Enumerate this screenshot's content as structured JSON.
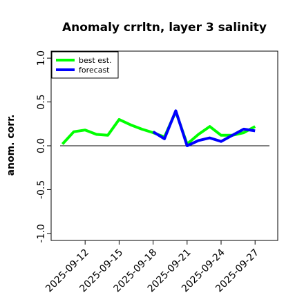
{
  "chart_data": {
    "type": "line",
    "title": "Anomaly crrltn, layer 3 salinity",
    "xlabel": "",
    "ylabel": "anom. corr.",
    "ylim": [
      -1.08,
      1.08
    ],
    "xlim": [
      "2025-09-09",
      "2025-09-29"
    ],
    "yticks": [
      -1.0,
      -0.5,
      0.0,
      0.5,
      1.0
    ],
    "ytick_labels": [
      "-1.0",
      "-0.5",
      "0.0",
      "0.5",
      "1.0"
    ],
    "xticks": [
      "2025-09-12",
      "2025-09-15",
      "2025-09-18",
      "2025-09-21",
      "2025-09-24",
      "2025-09-27"
    ],
    "xtick_labels": [
      "2025-09-12",
      "2025-09-15",
      "2025-09-18",
      "2025-09-21",
      "2025-09-24",
      "2025-09-27"
    ],
    "highlight_tick": "2025-09-18",
    "highlight_color": "#228b22",
    "zero_line": true,
    "legend_position": "top-left",
    "series": [
      {
        "name": "best est.",
        "color": "#00ff00",
        "x": [
          "2025-09-10",
          "2025-09-11",
          "2025-09-12",
          "2025-09-13",
          "2025-09-14",
          "2025-09-15",
          "2025-09-16",
          "2025-09-17",
          "2025-09-18",
          "2025-09-19",
          "2025-09-20",
          "2025-09-21",
          "2025-09-22",
          "2025-09-23",
          "2025-09-24",
          "2025-09-25",
          "2025-09-26",
          "2025-09-27"
        ],
        "y": [
          0.02,
          0.16,
          0.18,
          0.13,
          0.12,
          0.3,
          0.24,
          0.19,
          0.15,
          0.1,
          0.39,
          0.02,
          0.13,
          0.22,
          0.12,
          0.12,
          0.15,
          0.22
        ]
      },
      {
        "name": "forecast",
        "color": "#0000ff",
        "x": [
          "2025-09-18",
          "2025-09-19",
          "2025-09-20",
          "2025-09-21",
          "2025-09-22",
          "2025-09-23",
          "2025-09-24",
          "2025-09-25",
          "2025-09-26",
          "2025-09-27"
        ],
        "y": [
          0.16,
          0.08,
          0.4,
          0.0,
          0.06,
          0.09,
          0.05,
          0.12,
          0.19,
          0.17
        ]
      }
    ]
  }
}
